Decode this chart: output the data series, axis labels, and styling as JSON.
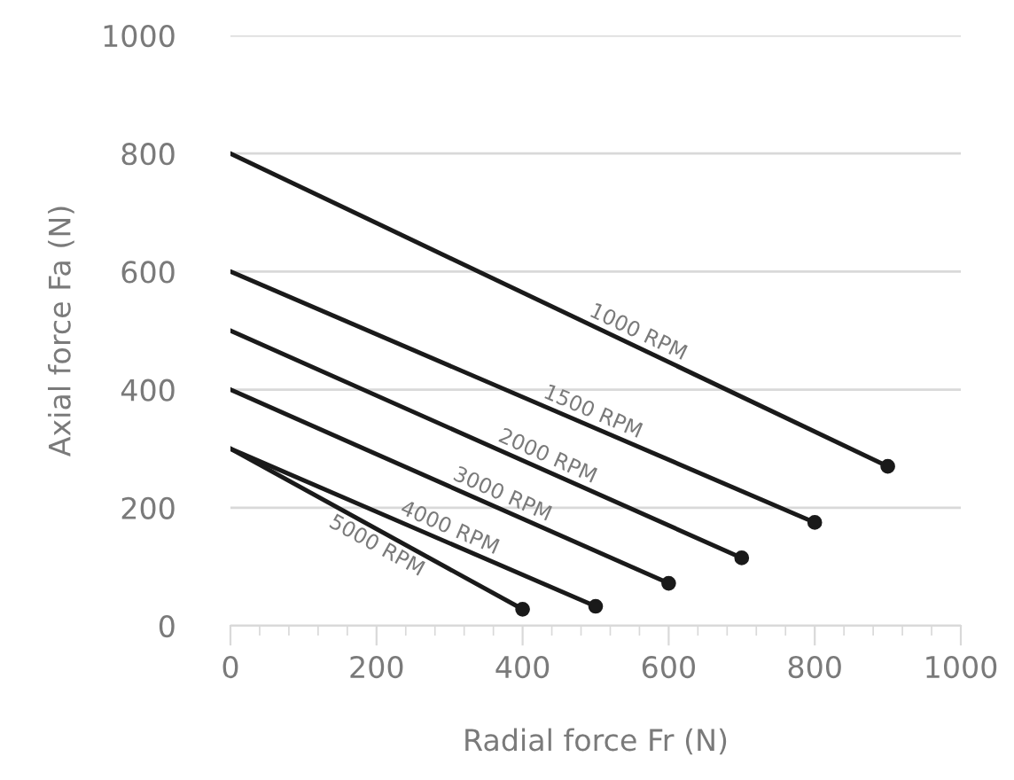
{
  "chart_data": {
    "type": "line",
    "xlabel": "Radial force Fr (N)",
    "ylabel": "Axial force Fa (N)",
    "xlim": [
      0,
      1000
    ],
    "ylim": [
      0,
      1000
    ],
    "xticks": [
      0,
      200,
      400,
      600,
      800,
      1000
    ],
    "yticks": [
      0,
      200,
      400,
      600,
      800,
      1000
    ],
    "grid": "y",
    "legend": false,
    "marker": "circle",
    "line_style": "solid",
    "series": [
      {
        "name": "1000 RPM",
        "color": "#1a1a1a",
        "x": [
          0,
          900
        ],
        "values": [
          800,
          270
        ]
      },
      {
        "name": "1500 RPM",
        "color": "#1a1a1a",
        "x": [
          0,
          800
        ],
        "values": [
          600,
          175
        ]
      },
      {
        "name": "2000 RPM",
        "color": "#1a1a1a",
        "x": [
          0,
          700
        ],
        "values": [
          500,
          115
        ]
      },
      {
        "name": "3000 RPM",
        "color": "#1a1a1a",
        "x": [
          0,
          600
        ],
        "values": [
          400,
          72
        ]
      },
      {
        "name": "4000 RPM",
        "color": "#1a1a1a",
        "x": [
          0,
          500
        ],
        "values": [
          300,
          33
        ]
      },
      {
        "name": "5000 RPM",
        "color": "#1a1a1a",
        "x": [
          0,
          400
        ],
        "values": [
          300,
          28
        ]
      }
    ]
  }
}
